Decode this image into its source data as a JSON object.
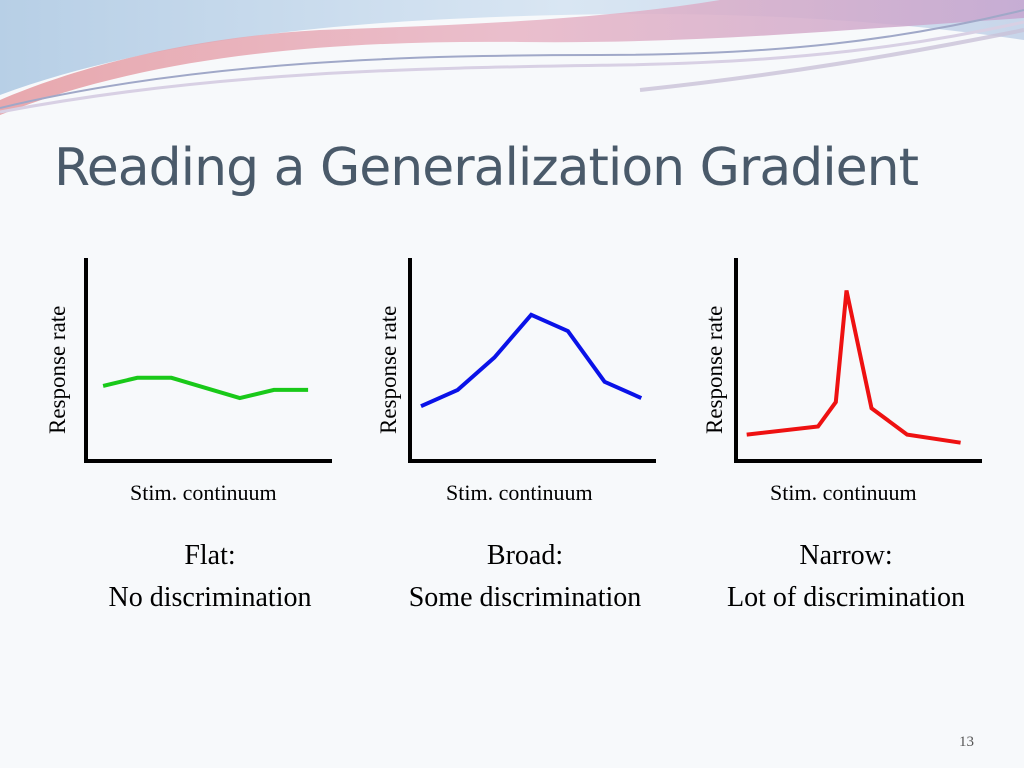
{
  "slide": {
    "title": "Reading a Generalization Gradient",
    "page_number": "13"
  },
  "chart_data": [
    {
      "type": "line",
      "ylabel": "Response rate",
      "xlabel": "Stim. continuum",
      "caption_line1": "Flat:",
      "caption_line2": "No discrimination",
      "color": "#19c919",
      "x": [
        1,
        2,
        3,
        4,
        5,
        6,
        7
      ],
      "y": [
        0.37,
        0.41,
        0.41,
        0.36,
        0.31,
        0.35,
        0.35
      ],
      "xlim": [
        0.5,
        7.7
      ],
      "ylim": [
        0,
        1
      ]
    },
    {
      "type": "line",
      "ylabel": "Response rate",
      "xlabel": "Stim. continuum",
      "caption_line1": "Broad:",
      "caption_line2": "Some discrimination",
      "color": "#0a12e8",
      "x": [
        1,
        2,
        3,
        4,
        5,
        6,
        7
      ],
      "y": [
        0.27,
        0.35,
        0.51,
        0.72,
        0.64,
        0.39,
        0.31
      ],
      "xlim": [
        0.7,
        7.4
      ],
      "ylim": [
        0,
        1
      ]
    },
    {
      "type": "line",
      "ylabel": "Response rate",
      "xlabel": "Stim. continuum",
      "caption_line1": "Narrow:",
      "caption_line2": "Lot of discrimination",
      "color": "#ee1111",
      "x": [
        1,
        3,
        3.5,
        3.8,
        4.5,
        5.5,
        7
      ],
      "y": [
        0.13,
        0.17,
        0.29,
        0.84,
        0.26,
        0.13,
        0.09
      ],
      "xlim": [
        0.7,
        7.6
      ],
      "ylim": [
        0,
        1
      ]
    }
  ]
}
